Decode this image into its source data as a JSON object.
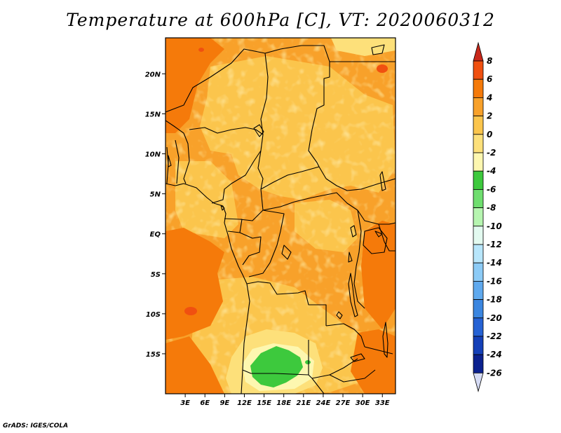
{
  "title": "Temperature at 600hPa [C], VT: 2020060312",
  "credit": "GrADS: IGES/COLA",
  "map": {
    "lat_labels": [
      "20N",
      "15N",
      "10N",
      "5N",
      "EQ",
      "5S",
      "10S",
      "15S"
    ],
    "lat_values": [
      20,
      15,
      10,
      5,
      0,
      -5,
      -10,
      -15
    ],
    "lon_labels": [
      "3E",
      "6E",
      "9E",
      "12E",
      "15E",
      "18E",
      "21E",
      "24E",
      "27E",
      "30E",
      "33E"
    ],
    "lon_values": [
      3,
      6,
      9,
      12,
      15,
      18,
      21,
      24,
      27,
      30,
      33
    ],
    "lon_range": [
      0,
      35
    ],
    "lat_range": [
      -20,
      24.5
    ]
  },
  "colorbar": {
    "labels": [
      "8",
      "6",
      "4",
      "2",
      "0",
      "-2",
      "-4",
      "-6",
      "-8",
      "-10",
      "-12",
      "-14",
      "-16",
      "-18",
      "-20",
      "-22",
      "-24",
      "-26"
    ],
    "colors": [
      "#dd2a16",
      "#f05010",
      "#f57a0a",
      "#f8a12a",
      "#fbc54c",
      "#fde07a",
      "#fdf7b0",
      "#3dc93d",
      "#6fde6f",
      "#b6f5b0",
      "#e3faf0",
      "#b8e6fb",
      "#8ccbf6",
      "#5fa9ee",
      "#3b86e0",
      "#2562d4",
      "#1440b8",
      "#0b218f",
      "#080a62",
      "#d6dcf5"
    ],
    "top_color": "#c8281a",
    "bottom_color": "#d6dcf5"
  },
  "colors": {
    "frame": "#000000",
    "background_field": "#f8a12a",
    "light_field": "#fbc54c",
    "warm_field": "#f57a0a",
    "hot_field": "#f05010",
    "pale_field": "#fde07a",
    "cool_field": "#fdf7b0",
    "green_field": "#3dc93d"
  }
}
